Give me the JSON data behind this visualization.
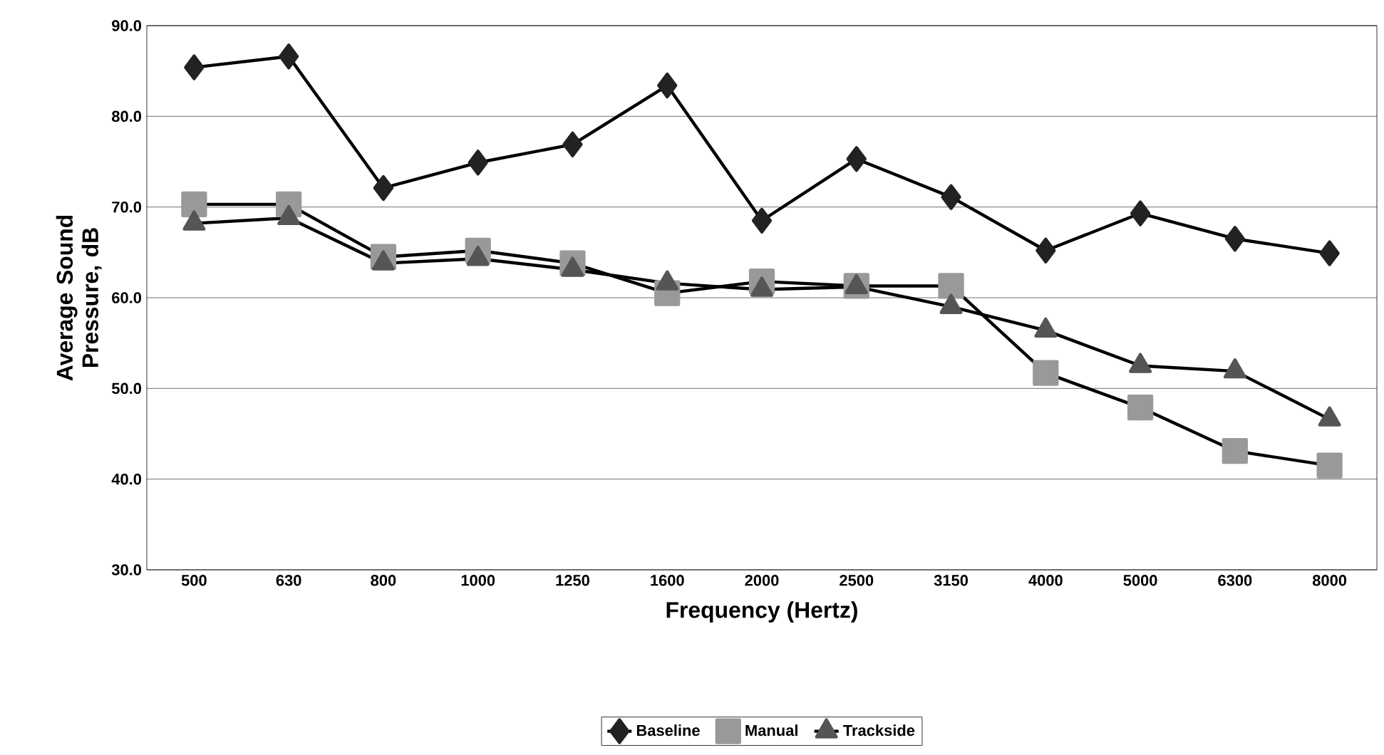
{
  "chart_data": {
    "type": "line",
    "xlabel": "Frequency (Hertz)",
    "ylabel": "Average Sound Pressure, dB",
    "categories": [
      "500",
      "630",
      "800",
      "1000",
      "1250",
      "1600",
      "2000",
      "2500",
      "3150",
      "4000",
      "5000",
      "6300",
      "8000"
    ],
    "series": [
      {
        "name": "Baseline",
        "color": "#222222",
        "marker": "diamond",
        "values": [
          85.4,
          86.6,
          72.1,
          74.9,
          76.9,
          83.4,
          68.5,
          75.3,
          71.1,
          65.2,
          69.3,
          66.5,
          64.9
        ]
      },
      {
        "name": "Manual",
        "color": "#999999",
        "marker": "square",
        "values": [
          70.3,
          70.3,
          64.5,
          65.2,
          63.8,
          60.5,
          61.8,
          61.3,
          61.3,
          51.7,
          47.9,
          43.1,
          41.5
        ]
      },
      {
        "name": "Trackside",
        "color": "#555555",
        "marker": "triangle",
        "values": [
          68.2,
          68.8,
          63.8,
          64.3,
          63.1,
          61.6,
          60.9,
          61.2,
          59.0,
          56.4,
          52.5,
          51.9,
          46.6
        ]
      }
    ],
    "ylim": [
      30,
      90
    ],
    "yticks": [
      {
        "value": 30,
        "label": "30.0"
      },
      {
        "value": 40,
        "label": "40.0"
      },
      {
        "value": 50,
        "label": "50.0"
      },
      {
        "value": 60,
        "label": "60.0"
      },
      {
        "value": 70,
        "label": "70.0"
      },
      {
        "value": 80,
        "label": "80.0"
      },
      {
        "value": 90,
        "label": "90.0"
      }
    ],
    "grid": "y",
    "legend": "bottom",
    "line_style": "solid"
  }
}
